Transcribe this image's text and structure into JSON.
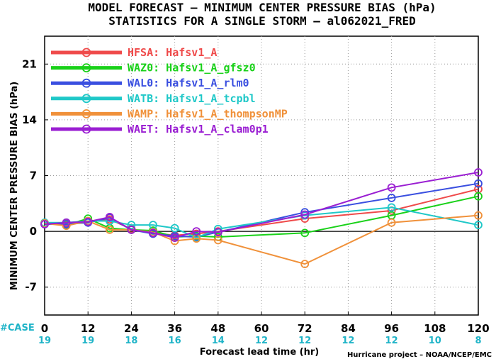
{
  "chart_data": {
    "type": "line",
    "title": "MODEL FORECAST – MINIMUM CENTER PRESSURE BIAS (hPa)",
    "subtitle": "STATISTICS FOR A SINGLE STORM – al062021_FRED",
    "xlabel": "Forecast lead time (hr)",
    "ylabel": "MINIMUM CENTER PRESSURE BIAS (hPa)",
    "xlim": [
      0,
      120
    ],
    "ylim": [
      -10.5,
      24.5
    ],
    "x_ticks": [
      "0",
      "12",
      "24",
      "36",
      "48",
      "60",
      "72",
      "84",
      "96",
      "108",
      "120"
    ],
    "y_ticks": [
      "21",
      "14",
      "7",
      "0",
      "-7"
    ],
    "grid": "dotted",
    "legend_position": "top-left",
    "case_label": "#CASE",
    "cases": [
      {
        "x": 0,
        "n": "19"
      },
      {
        "x": 12,
        "n": "19"
      },
      {
        "x": 24,
        "n": "18"
      },
      {
        "x": 36,
        "n": "16"
      },
      {
        "x": 48,
        "n": "14"
      },
      {
        "x": 60,
        "n": "12"
      },
      {
        "x": 72,
        "n": "12"
      },
      {
        "x": 84,
        "n": "12"
      },
      {
        "x": 96,
        "n": "12"
      },
      {
        "x": 108,
        "n": "10"
      },
      {
        "x": 120,
        "n": "8"
      }
    ],
    "credit": "Hurricane project – NOAA/NCEP/EMC",
    "series": [
      {
        "name": "HFSA:  Hafsv1_A",
        "color": "#ef4a4a",
        "x": [
          0,
          6,
          12,
          18,
          24,
          30,
          36,
          42,
          48,
          72,
          96,
          120
        ],
        "y": [
          1.0,
          1.0,
          1.2,
          1.5,
          0.3,
          -0.2,
          -0.5,
          -0.3,
          0.0,
          1.6,
          2.6,
          5.3
        ]
      },
      {
        "name": "WAZ0:  Hafsv1_A_gfsz0",
        "color": "#19d119",
        "x": [
          0,
          6,
          12,
          18,
          24,
          30,
          36,
          42,
          48,
          72,
          96,
          120
        ],
        "y": [
          1.0,
          0.8,
          1.6,
          0.4,
          0.2,
          0.1,
          -0.7,
          -0.6,
          -0.7,
          -0.2,
          2.0,
          4.4
        ]
      },
      {
        "name": "WAL0:  Hafsv1_A_rlm0",
        "color": "#3a4fe0",
        "x": [
          0,
          6,
          12,
          18,
          24,
          30,
          36,
          42,
          48,
          72,
          96,
          120
        ],
        "y": [
          0.9,
          0.9,
          1.1,
          1.7,
          0.2,
          -0.3,
          -0.6,
          -0.7,
          -0.1,
          2.4,
          4.2,
          6.0
        ]
      },
      {
        "name": "WATB:  Hafsv1_A_tcpbl",
        "color": "#1fc8c8",
        "x": [
          0,
          6,
          12,
          18,
          24,
          30,
          36,
          42,
          48,
          72,
          96,
          120
        ],
        "y": [
          1.1,
          1.1,
          1.3,
          1.3,
          0.8,
          0.8,
          0.4,
          -0.8,
          0.3,
          2.0,
          3.0,
          0.8
        ]
      },
      {
        "name": "WAMP:  Hafsv1_A_thompsonMP",
        "color": "#f0913a",
        "x": [
          0,
          6,
          12,
          18,
          24,
          30,
          36,
          42,
          48,
          72,
          96,
          120
        ],
        "y": [
          1.0,
          0.7,
          1.3,
          0.2,
          0.2,
          -0.1,
          -1.2,
          -0.9,
          -1.1,
          -4.1,
          1.1,
          2.0
        ]
      },
      {
        "name": "WAET:  Hafsv1_A_clam0p1",
        "color": "#9a1ed2",
        "x": [
          0,
          6,
          12,
          18,
          24,
          30,
          36,
          42,
          48,
          72,
          96,
          120
        ],
        "y": [
          0.9,
          1.1,
          1.2,
          1.8,
          0.2,
          -0.2,
          -0.8,
          0.0,
          -0.1,
          2.1,
          5.5,
          7.4
        ]
      }
    ]
  }
}
